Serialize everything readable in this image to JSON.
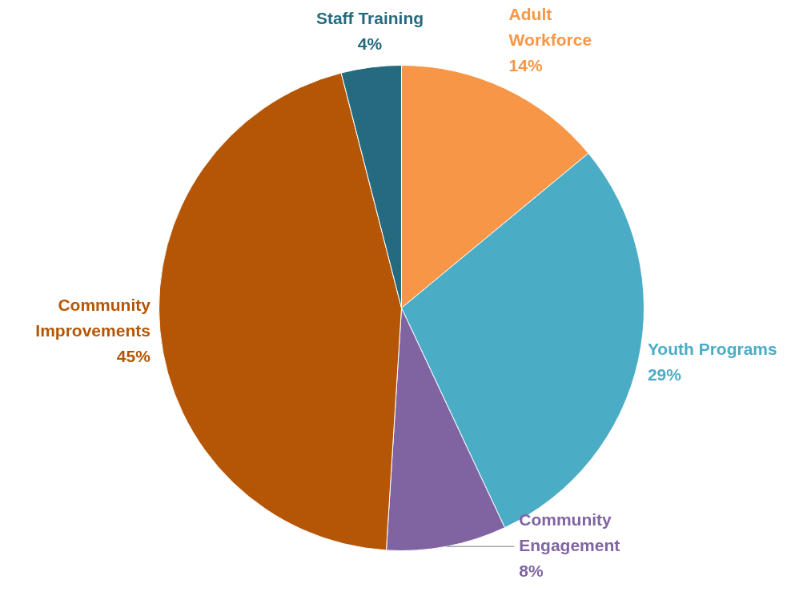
{
  "chart_data": {
    "type": "pie",
    "categories": [
      "Adult\nWorkforce",
      "Youth Programs",
      "Community\nEngagement",
      "Community\nImprovements",
      "Staff Training"
    ],
    "values": [
      14,
      29,
      8,
      45,
      4
    ],
    "value_labels": [
      "14%",
      "29%",
      "8%",
      "45%",
      "4%"
    ],
    "colors": [
      "#f79646",
      "#4bacc6",
      "#8064a2",
      "#b55606",
      "#256a7e"
    ],
    "legend": false
  }
}
